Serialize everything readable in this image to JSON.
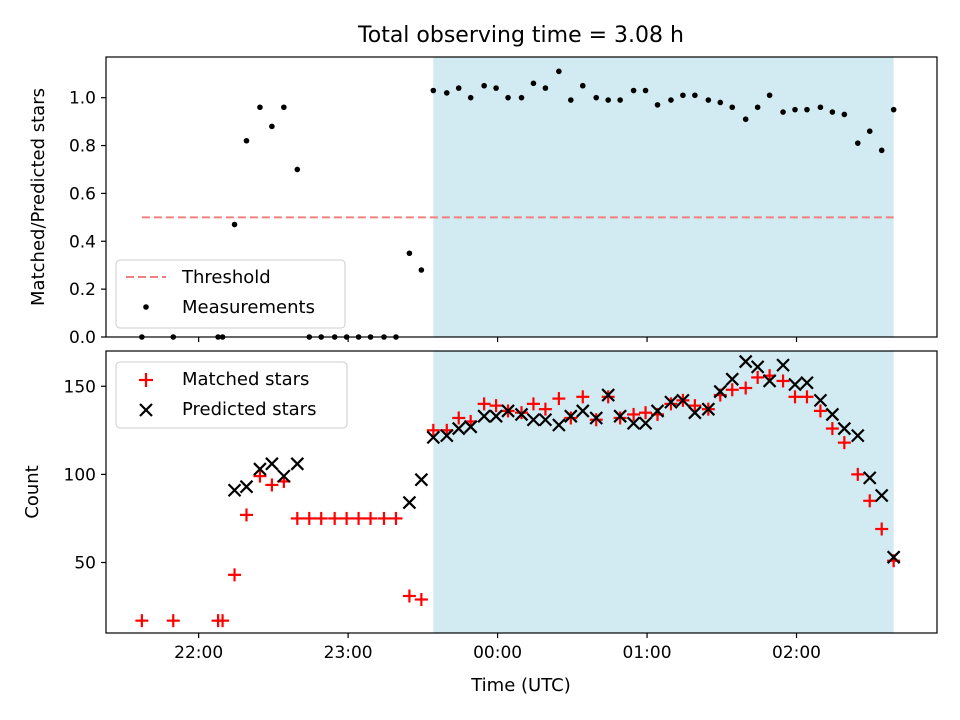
{
  "figure": {
    "title": "Total observing time = 3.08 h",
    "xlabel": "Time (UTC)",
    "x_ticks": [
      "22:00",
      "23:00",
      "00:00",
      "01:00",
      "02:00"
    ],
    "x_tick_hours": [
      22,
      23,
      24,
      25,
      26
    ],
    "x_range": [
      21.38,
      26.94
    ],
    "shaded_interval": [
      23.57,
      26.65
    ],
    "shade_color": "#add8e6"
  },
  "chart_data": [
    {
      "type": "scatter",
      "ylabel": "Matched/Predicted stars",
      "ylim": [
        0,
        1.17
      ],
      "y_ticks": [
        "0.0",
        "0.2",
        "0.4",
        "0.6",
        "0.8",
        "1.0"
      ],
      "y_tick_values": [
        0,
        0.2,
        0.4,
        0.6,
        0.8,
        1.0
      ],
      "legend_position": "lower-left",
      "threshold": {
        "name": "Threshold",
        "value": 0.5,
        "x_range": [
          21.62,
          26.65
        ],
        "color": "#f08080"
      },
      "series": [
        {
          "name": "Measurements",
          "color": "#000000",
          "x": [
            21.62,
            21.83,
            22.13,
            22.16,
            22.24,
            22.32,
            22.41,
            22.49,
            22.57,
            22.66,
            22.74,
            22.82,
            22.91,
            22.99,
            23.07,
            23.15,
            23.24,
            23.32,
            23.41,
            23.49,
            23.57,
            23.66,
            23.74,
            23.82,
            23.91,
            23.99,
            24.07,
            24.16,
            24.24,
            24.32,
            24.41,
            24.49,
            24.57,
            24.66,
            24.74,
            24.82,
            24.91,
            24.99,
            25.07,
            25.16,
            25.24,
            25.32,
            25.41,
            25.49,
            25.57,
            25.66,
            25.74,
            25.82,
            25.91,
            25.99,
            26.07,
            26.16,
            26.24,
            26.32,
            26.41,
            26.49,
            26.57,
            26.65
          ],
          "y": [
            0,
            0,
            0,
            0,
            0.47,
            0.82,
            0.96,
            0.88,
            0.96,
            0.7,
            0,
            0,
            0,
            0,
            0,
            0,
            0,
            0,
            0.35,
            0.28,
            1.03,
            1.02,
            1.04,
            1.0,
            1.05,
            1.04,
            1.0,
            1.0,
            1.06,
            1.04,
            1.11,
            0.99,
            1.05,
            1.0,
            0.99,
            0.99,
            1.03,
            1.03,
            0.97,
            0.99,
            1.01,
            1.01,
            0.99,
            0.98,
            0.96,
            0.91,
            0.96,
            1.01,
            0.94,
            0.95,
            0.95,
            0.96,
            0.94,
            0.93,
            0.81,
            0.86,
            0.78,
            0.95
          ]
        }
      ]
    },
    {
      "type": "scatter",
      "ylabel": "Count",
      "ylim": [
        10,
        170
      ],
      "y_ticks": [
        "50",
        "100",
        "150"
      ],
      "y_tick_values": [
        50,
        100,
        150
      ],
      "legend_position": "upper-left",
      "series": [
        {
          "name": "Matched stars",
          "marker": "+",
          "color": "#ff0000",
          "x": [
            21.62,
            21.83,
            22.13,
            22.16,
            22.24,
            22.32,
            22.41,
            22.49,
            22.57,
            22.66,
            22.74,
            22.82,
            22.91,
            22.99,
            23.07,
            23.15,
            23.24,
            23.32,
            23.41,
            23.49,
            23.57,
            23.66,
            23.74,
            23.82,
            23.91,
            23.99,
            24.07,
            24.16,
            24.24,
            24.32,
            24.41,
            24.49,
            24.57,
            24.66,
            24.74,
            24.82,
            24.91,
            24.99,
            25.07,
            25.16,
            25.24,
            25.32,
            25.41,
            25.49,
            25.57,
            25.66,
            25.74,
            25.82,
            25.91,
            25.99,
            26.07,
            26.16,
            26.24,
            26.32,
            26.41,
            26.49,
            26.57,
            26.65
          ],
          "y": [
            17,
            17,
            17,
            17,
            43,
            77,
            99,
            94,
            96,
            75,
            75,
            75,
            75,
            75,
            75,
            75,
            75,
            75,
            31,
            29,
            125,
            125,
            132,
            130,
            140,
            139,
            136,
            135,
            140,
            137,
            143,
            132,
            144,
            131,
            144,
            132,
            134,
            135,
            134,
            140,
            142,
            139,
            137,
            145,
            148,
            149,
            155,
            156,
            153,
            144,
            144,
            136,
            126,
            118,
            100,
            85,
            69,
            51
          ]
        },
        {
          "name": "Predicted stars",
          "marker": "x",
          "color": "#000000",
          "x": [
            22.24,
            22.32,
            22.41,
            22.49,
            22.57,
            22.66,
            23.41,
            23.49,
            23.57,
            23.66,
            23.74,
            23.82,
            23.91,
            23.99,
            24.07,
            24.16,
            24.24,
            24.32,
            24.41,
            24.49,
            24.57,
            24.66,
            24.74,
            24.82,
            24.91,
            24.99,
            25.07,
            25.16,
            25.24,
            25.32,
            25.41,
            25.49,
            25.57,
            25.66,
            25.74,
            25.82,
            25.91,
            25.99,
            26.07,
            26.16,
            26.24,
            26.32,
            26.41,
            26.49,
            26.57,
            26.65
          ],
          "y": [
            91,
            93,
            103,
            106,
            99,
            106,
            84,
            97,
            121,
            122,
            126,
            127,
            133,
            133,
            136,
            134,
            131,
            131,
            128,
            133,
            136,
            132,
            145,
            133,
            129,
            129,
            136,
            141,
            142,
            135,
            137,
            147,
            154,
            164,
            161,
            153,
            162,
            151,
            152,
            142,
            134,
            126,
            122,
            98,
            88,
            53
          ]
        }
      ]
    }
  ]
}
